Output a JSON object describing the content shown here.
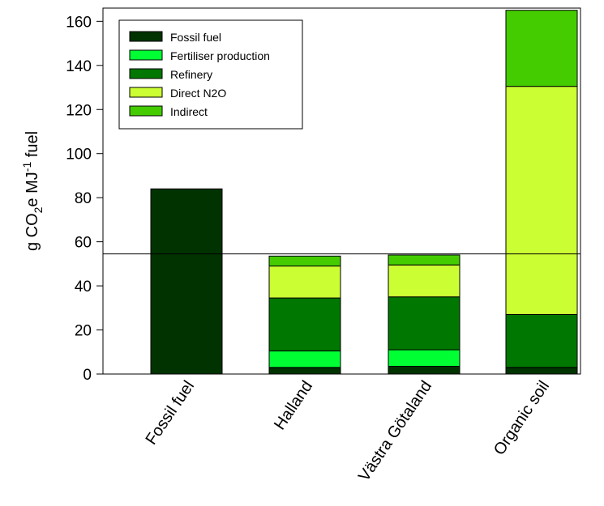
{
  "chart_data": {
    "type": "bar",
    "stacked": true,
    "categories": [
      "Fossil fuel",
      "Halland",
      "Västra Götaland",
      "Organic soil"
    ],
    "series": [
      {
        "name": "Fossil fuel",
        "color": "#003300",
        "values": [
          84,
          3,
          3.5,
          3
        ]
      },
      {
        "name": "Fertiliser production",
        "color": "#00ff33",
        "values": [
          0,
          7.5,
          7.5,
          0
        ]
      },
      {
        "name": "Refinery",
        "color": "#007700",
        "values": [
          0,
          24,
          24,
          24
        ]
      },
      {
        "name": "Direct N2O",
        "color": "#ccff33",
        "values": [
          0,
          14.5,
          14.5,
          103.5
        ]
      },
      {
        "name": "Indirect",
        "color": "#44cc00",
        "values": [
          0,
          4.5,
          4.5,
          34.5
        ]
      }
    ],
    "reference_line": 54.5,
    "ylabel": {
      "prefix": "g CO",
      "sub": "2",
      "mid": "e MJ",
      "sup": "-1",
      "suffix": " fuel"
    },
    "ylim": [
      0,
      166
    ],
    "yticks": [
      0,
      20,
      40,
      60,
      80,
      100,
      120,
      140,
      160
    ],
    "legend_position": "top-left",
    "grid": false
  }
}
